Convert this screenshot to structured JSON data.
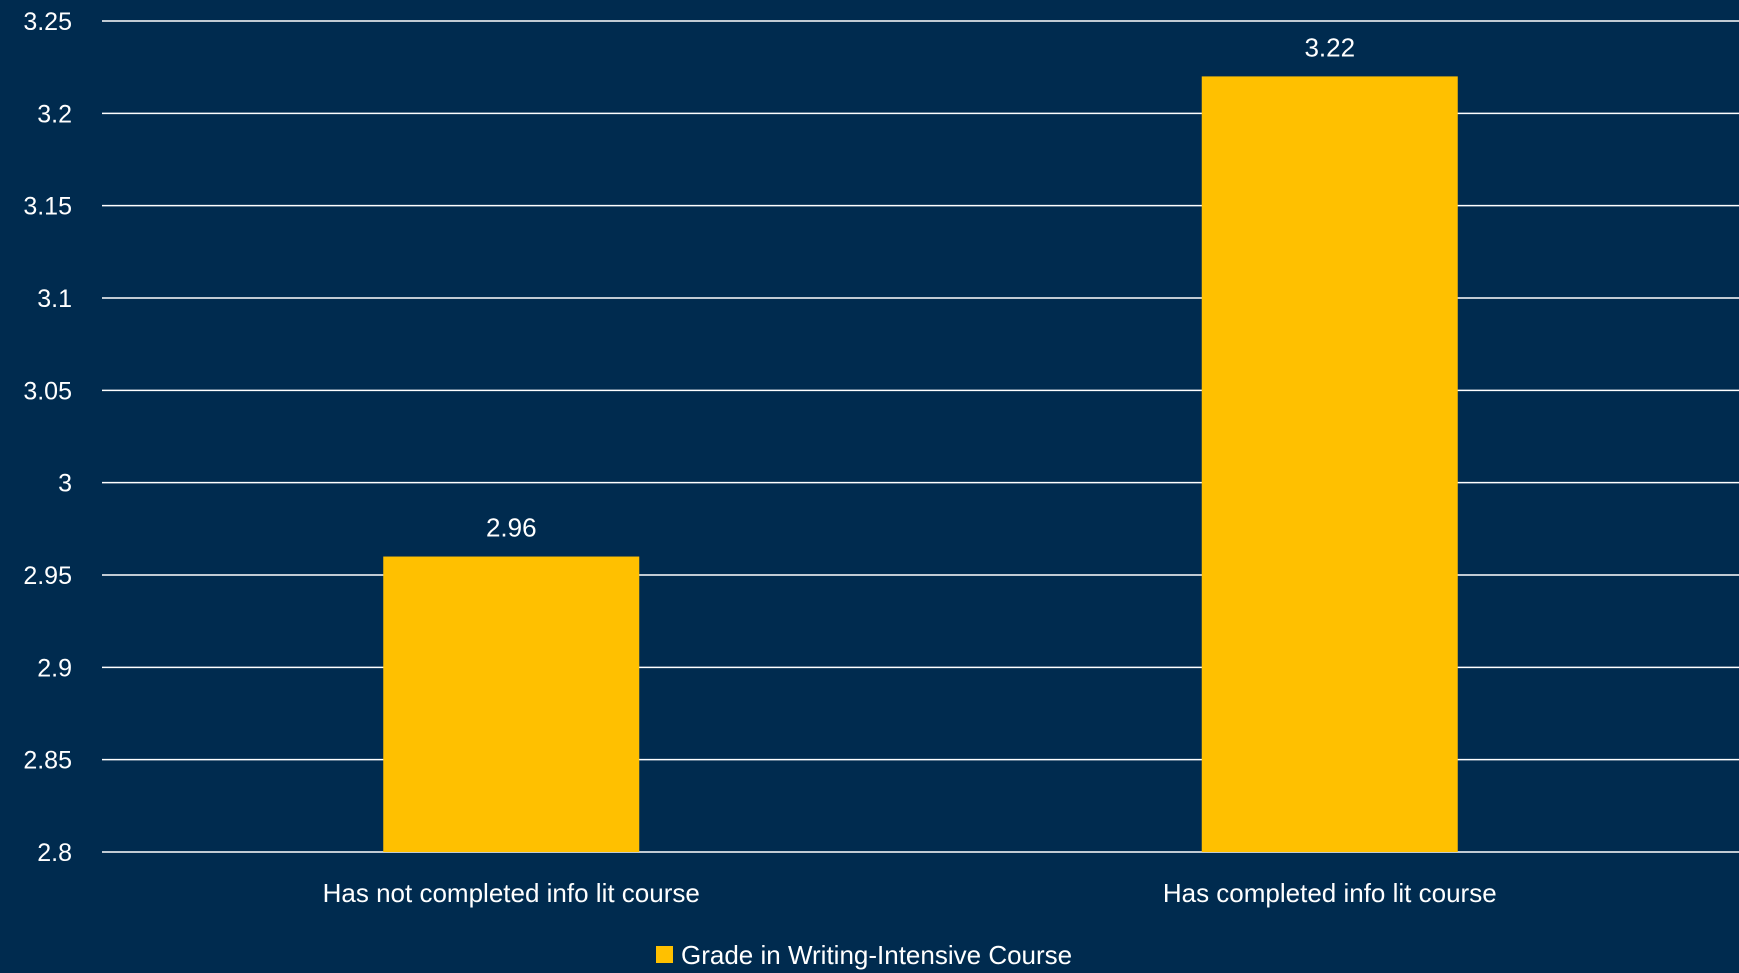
{
  "chart_data": {
    "type": "bar",
    "categories": [
      "Has not completed info lit course",
      "Has completed info lit course"
    ],
    "series": [
      {
        "name": "Grade in Writing-Intensive Course",
        "values": [
          2.96,
          3.22
        ],
        "color": "#ffc000"
      }
    ],
    "data_labels": [
      "2.96",
      "3.22"
    ],
    "title": "",
    "xlabel": "",
    "ylabel": "",
    "ylim": [
      2.8,
      3.25
    ],
    "yticks": [
      2.8,
      2.85,
      2.9,
      2.95,
      3,
      3.05,
      3.1,
      3.15,
      3.2,
      3.25
    ],
    "ytick_labels": [
      "2.8",
      "2.85",
      "2.9",
      "2.95",
      "3",
      "3.05",
      "3.1",
      "3.15",
      "3.2",
      "3.25"
    ],
    "grid": true,
    "legend_position": "bottom",
    "background_color": "#002b4f",
    "gridline_color": "#ffffff",
    "text_color": "#ffffff"
  }
}
